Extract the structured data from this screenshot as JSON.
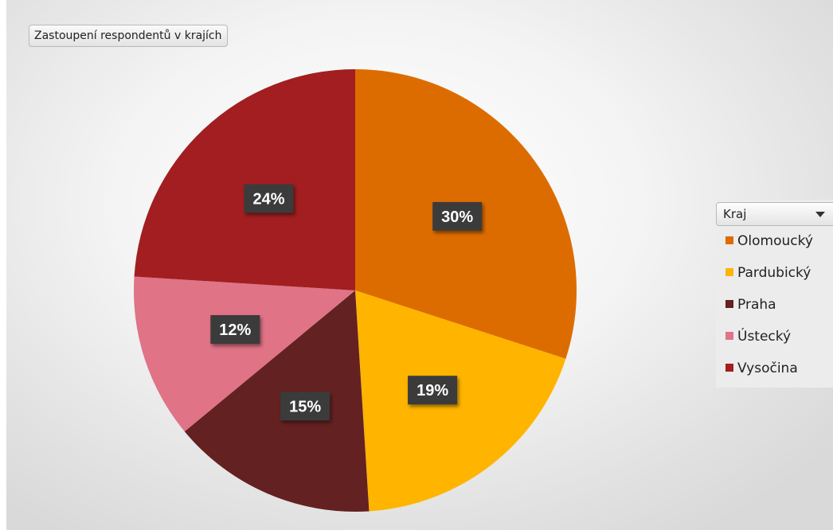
{
  "title": "Zastoupení respondentů v krajích",
  "legend": {
    "header": "Kraj",
    "items": [
      {
        "label": "Olomoucký",
        "color": "#dd6c00"
      },
      {
        "label": "Pardubický",
        "color": "#ffb400"
      },
      {
        "label": "Praha",
        "color": "#642121"
      },
      {
        "label": "Ústecký",
        "color": "#e07386"
      },
      {
        "label": "Vysočina",
        "color": "#a21e20"
      }
    ]
  },
  "chart_data": {
    "type": "pie",
    "title": "Zastoupení respondentů v krajích",
    "legend_title": "Kraj",
    "legend_position": "right",
    "categories": [
      "Olomoucký",
      "Pardubický",
      "Praha",
      "Ústecký",
      "Vysočina"
    ],
    "values": [
      30,
      19,
      15,
      12,
      24
    ],
    "labels": [
      "30%",
      "19%",
      "15%",
      "12%",
      "24%"
    ],
    "colors": [
      "#dd6c00",
      "#ffb400",
      "#642121",
      "#e07386",
      "#a21e20"
    ]
  }
}
